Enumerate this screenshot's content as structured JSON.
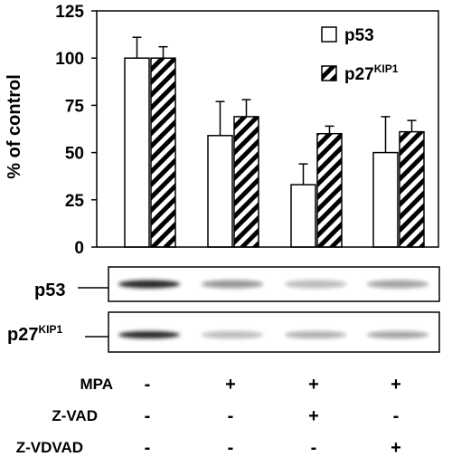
{
  "chart_data": {
    "type": "bar",
    "ylabel": "% of control",
    "ylim": [
      0,
      125
    ],
    "yticks": [
      0,
      25,
      50,
      75,
      100,
      125
    ],
    "categories": [
      "MPA- Z-VAD- Z-VDVAD-",
      "MPA+ Z-VAD- Z-VDVAD-",
      "MPA+ Z-VAD+ Z-VDVAD-",
      "MPA+ Z-VAD- Z-VDVAD+"
    ],
    "grid": false,
    "legend_position": "top-right",
    "series": [
      {
        "name": "p53",
        "name_main": "p53",
        "name_sup": "",
        "pattern": "open",
        "values": [
          100,
          59,
          33,
          50
        ],
        "errors": [
          11,
          18,
          11,
          19
        ]
      },
      {
        "name": "p27KIP1",
        "name_main": "p27",
        "name_sup": "KIP1",
        "pattern": "hatched",
        "values": [
          100,
          69,
          60,
          61
        ],
        "errors": [
          6,
          9,
          4,
          6
        ]
      }
    ]
  },
  "blots": [
    {
      "label_main": "p53",
      "label_sup": "",
      "intensities": [
        0.95,
        0.45,
        0.3,
        0.4
      ]
    },
    {
      "label_main": "p27",
      "label_sup": "KIP1",
      "intensities": [
        0.95,
        0.3,
        0.35,
        0.4
      ]
    }
  ],
  "treatments": {
    "rows": [
      {
        "label": "MPA",
        "signs": [
          "-",
          "+",
          "+",
          "+"
        ]
      },
      {
        "label": "Z-VAD",
        "signs": [
          "-",
          "-",
          "+",
          "-"
        ]
      },
      {
        "label": "Z-VDVAD",
        "signs": [
          "-",
          "-",
          "-",
          "+"
        ]
      }
    ]
  },
  "colors": {
    "ink": "#000000",
    "bar_fill": "#ffffff",
    "band": "#1a1a1a"
  }
}
